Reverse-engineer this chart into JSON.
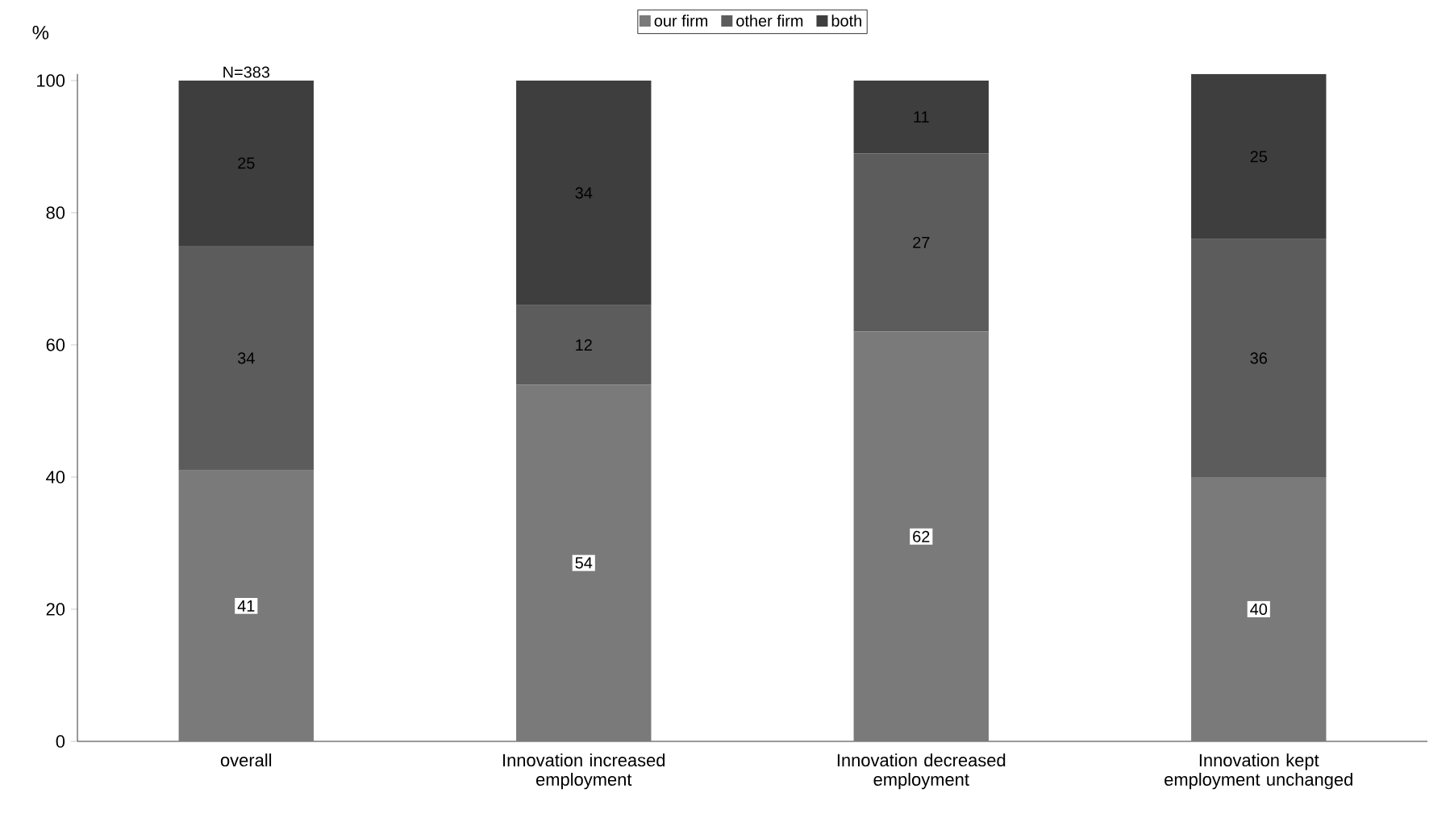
{
  "chart_data": {
    "type": "bar",
    "stacked": true,
    "ylabel": "%",
    "categories": [
      "overall",
      "Innovation increased employment",
      "Innovation decreased employment",
      "Innovation kept employment unchanged"
    ],
    "series": [
      {
        "name": "our firm",
        "color": "#7a7a7a",
        "values": [
          41,
          54,
          62,
          40
        ]
      },
      {
        "name": "other firm",
        "color": "#5c5c5c",
        "values": [
          34,
          12,
          27,
          36
        ]
      },
      {
        "name": "both",
        "color": "#3e3e3e",
        "values": [
          25,
          34,
          11,
          25
        ]
      }
    ],
    "ylim": [
      0,
      101
    ],
    "yticks": [
      0,
      20,
      40,
      60,
      80,
      100
    ],
    "data_labels": true,
    "legend": "top",
    "grid": false,
    "annotations": [
      {
        "text": "N=383",
        "x": "overall",
        "y": 100
      }
    ]
  }
}
